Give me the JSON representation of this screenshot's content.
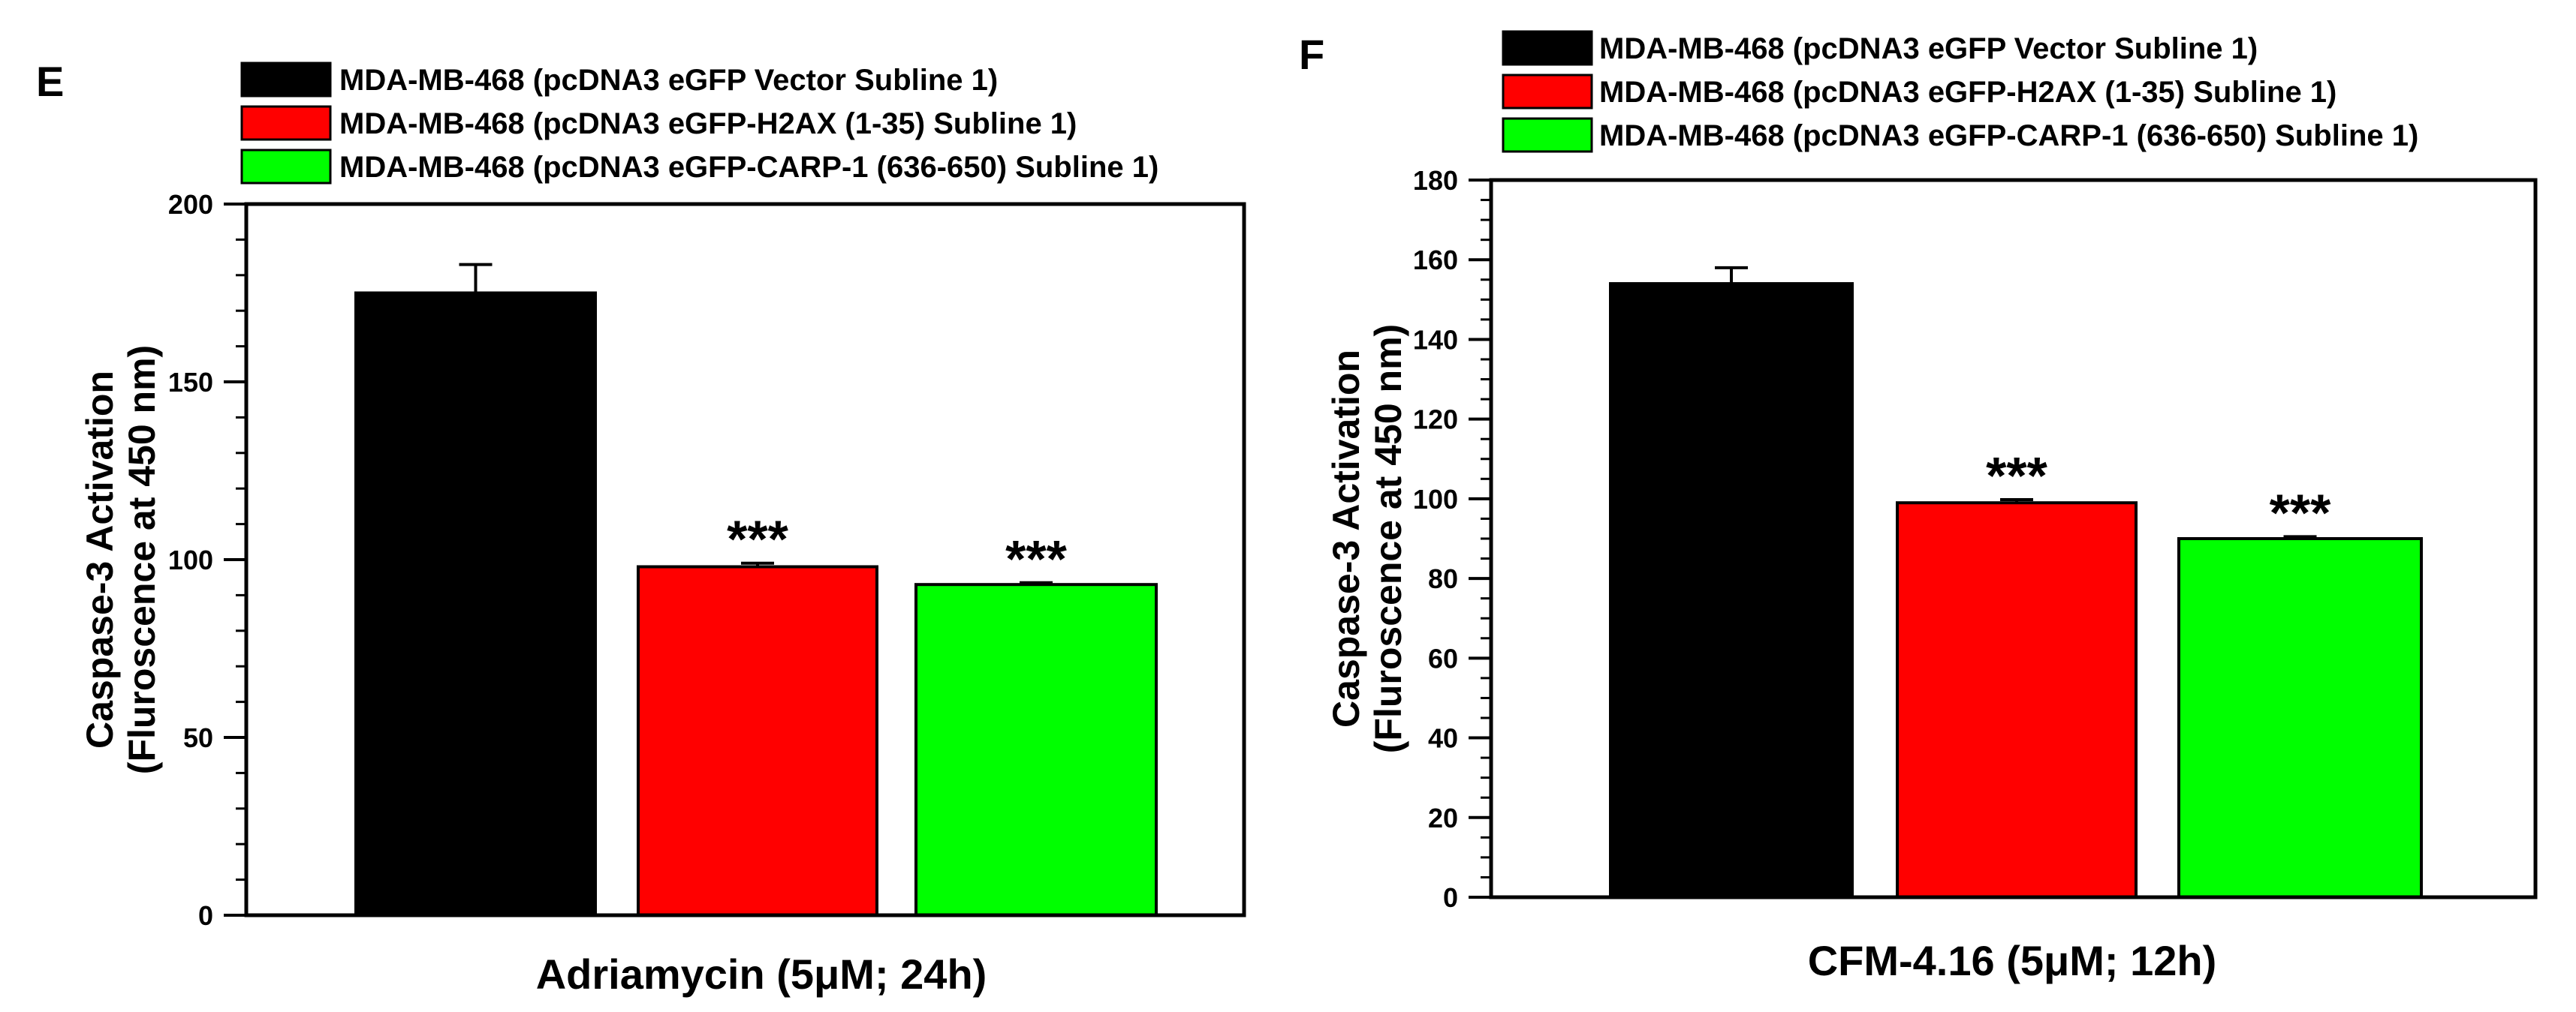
{
  "chart_data": [
    {
      "type": "bar",
      "panel": "E",
      "title": "",
      "xlabel": "Adriamycin (5μM; 24h)",
      "ylabel_line1": "Caspase-3 Activation",
      "ylabel_line2": "(Fluroscence at 450 nm)",
      "ylim": [
        0,
        200
      ],
      "yticks": [
        0,
        50,
        100,
        150,
        200
      ],
      "minor_step": 10,
      "legend": [
        "MDA-MB-468 (pcDNA3 eGFP Vector Subline 1)",
        "MDA-MB-468 (pcDNA3 eGFP-H2AX (1-35) Subline 1)",
        "MDA-MB-468 (pcDNA3 eGFP-CARP-1 (636-650) Subline 1)"
      ],
      "colors": [
        "#000000",
        "#ff0000",
        "#00ff00"
      ],
      "values": [
        175,
        98,
        93
      ],
      "errors": [
        8,
        1,
        0.5
      ],
      "significance": [
        "",
        "***",
        "***"
      ]
    },
    {
      "type": "bar",
      "panel": "F",
      "title": "",
      "xlabel": "CFM-4.16 (5μM; 12h)",
      "ylabel_line1": "Caspase-3 Activation",
      "ylabel_line2": "(Fluroscence at 450 nm)",
      "ylim": [
        0,
        180
      ],
      "yticks": [
        0,
        20,
        40,
        60,
        80,
        100,
        120,
        140,
        160,
        180
      ],
      "minor_step": 5,
      "legend": [
        "MDA-MB-468 (pcDNA3 eGFP Vector Subline 1)",
        "MDA-MB-468 (pcDNA3 eGFP-H2AX (1-35) Subline 1)",
        "MDA-MB-468 (pcDNA3 eGFP-CARP-1 (636-650) Subline 1)"
      ],
      "colors": [
        "#000000",
        "#ff0000",
        "#00ff00"
      ],
      "values": [
        154,
        99,
        90
      ],
      "errors": [
        4,
        0.8,
        0.5
      ],
      "significance": [
        "",
        "***",
        "***"
      ]
    }
  ]
}
